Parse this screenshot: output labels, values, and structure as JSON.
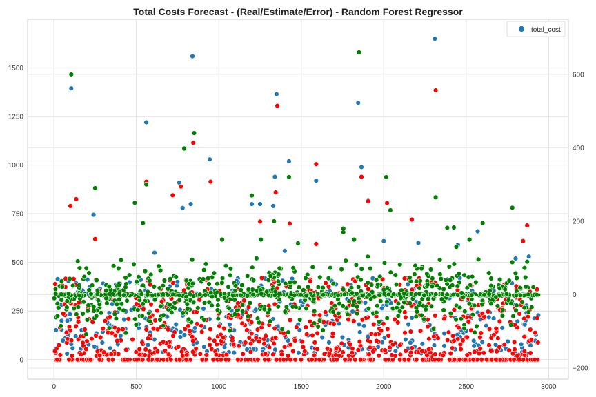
{
  "chart_data": {
    "type": "scatter",
    "title": "Total Costs Forecast - (Real/Estimate/Error) - Random Forest Regressor",
    "xlabel": "",
    "ylabel": "",
    "xlim": [
      -160,
      3120
    ],
    "ylim": [
      -100,
      1750
    ],
    "y2lim": [
      -230,
      750
    ],
    "x_ticks": [
      0,
      500,
      1000,
      1500,
      2000,
      2500,
      3000
    ],
    "y_ticks": [
      0,
      250,
      500,
      750,
      1000,
      1250,
      1500
    ],
    "y2_ticks": [
      -200,
      0,
      200,
      400,
      600
    ],
    "grid": true,
    "legend": {
      "position": "top-right",
      "entries": [
        "total_cost"
      ]
    },
    "series": [
      {
        "name": "total_cost",
        "axis": "left",
        "color": "#1f77b4",
        "description_only": false,
        "points": [
          [
            105,
            1395
          ],
          [
            840,
            1560
          ],
          [
            560,
            1220
          ],
          [
            945,
            1030
          ],
          [
            1350,
            1365
          ],
          [
            1425,
            1020
          ],
          [
            1590,
            920
          ],
          [
            1845,
            1320
          ],
          [
            1865,
            990
          ],
          [
            1905,
            820
          ],
          [
            2310,
            1650
          ],
          [
            2000,
            610
          ],
          [
            240,
            745
          ],
          [
            1200,
            800
          ],
          [
            1250,
            800
          ],
          [
            760,
            910
          ],
          [
            780,
            780
          ],
          [
            830,
            800
          ],
          [
            1330,
            790
          ],
          [
            1340,
            940
          ],
          [
            2800,
            520
          ],
          [
            2880,
            530
          ],
          [
            1400,
            560
          ],
          [
            610,
            550
          ],
          [
            2450,
            590
          ],
          [
            2570,
            660
          ],
          [
            2210,
            600
          ]
        ],
        "generated_noise": {
          "seed": 7,
          "count": 360,
          "xmax": 2940,
          "ymin": 30,
          "ymax": 420
        }
      },
      {
        "name": "",
        "axis": "left",
        "color": "#ff0000",
        "points": [
          [
            100,
            790
          ],
          [
            135,
            825
          ],
          [
            560,
            915
          ],
          [
            720,
            845
          ],
          [
            770,
            890
          ],
          [
            845,
            1115
          ],
          [
            950,
            915
          ],
          [
            1355,
            1305
          ],
          [
            1345,
            860
          ],
          [
            1430,
            700
          ],
          [
            1590,
            1005
          ],
          [
            1865,
            940
          ],
          [
            1905,
            815
          ],
          [
            2020,
            805
          ],
          [
            2315,
            1385
          ],
          [
            2870,
            690
          ],
          [
            250,
            620
          ],
          [
            1250,
            710
          ],
          [
            1590,
            595
          ],
          [
            2170,
            720
          ],
          [
            2845,
            610
          ]
        ],
        "zero_count": 210,
        "generated_noise": {
          "seed": 13,
          "count": 620,
          "xmax": 2940,
          "ymin": 20,
          "ymax": 420
        }
      },
      {
        "name": "",
        "axis": "right",
        "color": "#008000",
        "points": [
          [
            105,
            600
          ],
          [
            850,
            440
          ],
          [
            790,
            398
          ],
          [
            540,
            195
          ],
          [
            560,
            300
          ],
          [
            490,
            250
          ],
          [
            1200,
            270
          ],
          [
            1425,
            320
          ],
          [
            1850,
            660
          ],
          [
            2015,
            320
          ],
          [
            2040,
            230
          ],
          [
            2315,
            265
          ],
          [
            1255,
            150
          ],
          [
            1335,
            200
          ],
          [
            1755,
            180
          ],
          [
            2600,
            195
          ],
          [
            2385,
            182
          ],
          [
            2425,
            183
          ],
          [
            2780,
            237
          ],
          [
            1020,
            150
          ],
          [
            250,
            290
          ],
          [
            1480,
            140
          ],
          [
            1755,
            170
          ],
          [
            1820,
            150
          ],
          [
            2870,
            90
          ],
          [
            2440,
            130
          ],
          [
            2520,
            150
          ]
        ],
        "generated_noise": {
          "seed": 29,
          "count": 1000,
          "xmax": 2940,
          "center": 0,
          "spread": 55
        }
      }
    ]
  }
}
